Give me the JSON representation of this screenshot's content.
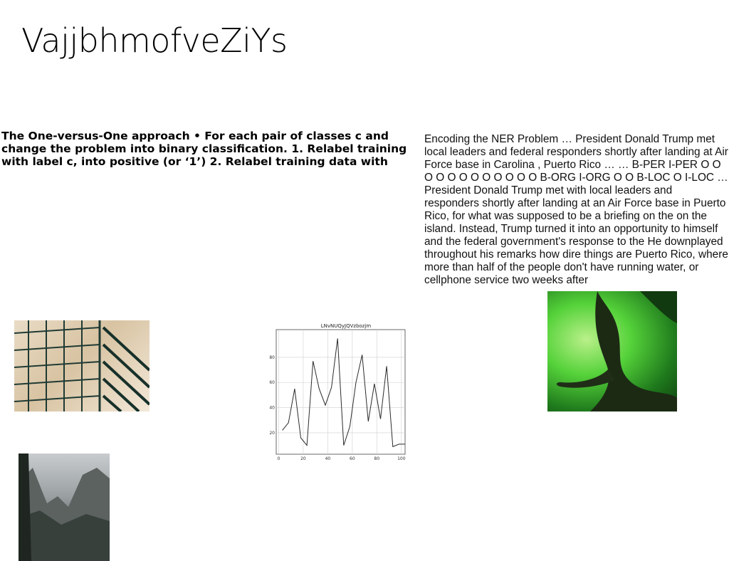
{
  "page": {
    "title": "VajjbhmofveZiYs",
    "bold_paragraph": "The One-versus-One approach • For each pair of classes c and change the problem into binary classification. 1. Relabel training with label c, into positive (or ‘1’) 2. Relabel training data with",
    "body_paragraph": "Encoding the NER Problem … President Donald Trump met local leaders and federal responders shortly after landing at Air Force base in Carolina , Puerto Rico … … B-PER I-PER O O O O O O O O O O O O B-ORG I-ORG O O B-LOC O I-LOC … President Donald Trump met with local leaders and responders shortly after landing at an Air Force base in Puerto Rico, for what was supposed to be a briefing on the on the island. Instead, Trump turned it into an opportunity to himself and the federal government's response to the He downplayed throughout his remarks how dire things are Puerto Rico, where more than half of the people don't have running water, or cellphone service two weeks after"
  },
  "chart_data": {
    "type": "line",
    "title": "LNvNUQyJQVzbozjm",
    "xlabel": "",
    "ylabel": "",
    "x": [
      3,
      8,
      13,
      18,
      23,
      28,
      33,
      38,
      43,
      48,
      53,
      58,
      63,
      68,
      73,
      78,
      83,
      88,
      93,
      98,
      103
    ],
    "values": [
      22,
      28,
      55,
      16,
      10,
      77,
      55,
      42,
      56,
      95,
      10,
      25,
      60,
      82,
      29,
      59,
      31,
      73,
      9,
      11,
      11
    ],
    "xlim": [
      -2,
      103
    ],
    "ylim": [
      3,
      102
    ],
    "xticks": [
      0,
      20,
      40,
      60,
      80,
      100
    ],
    "yticks": [
      20,
      40,
      60,
      80
    ],
    "grid": true,
    "line_color": "#2b2b2b"
  }
}
